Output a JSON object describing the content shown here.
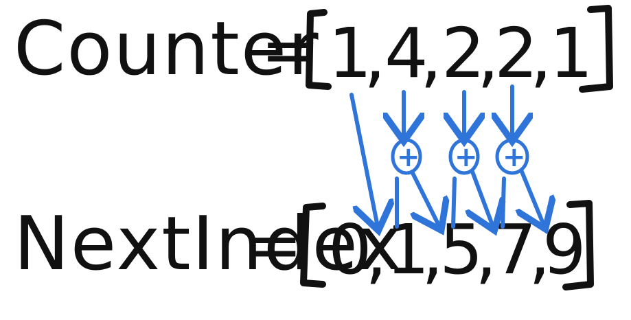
{
  "counter": {
    "name": "Counter",
    "equals": "=",
    "values": [
      "1",
      "4",
      "2",
      "2",
      "1"
    ],
    "separator": ","
  },
  "next_index": {
    "name": "NextIndex",
    "equals": "=",
    "values": [
      "0",
      "1",
      "5",
      "7",
      "9"
    ],
    "separator": ","
  },
  "operators": [
    "+",
    "+",
    "+"
  ],
  "colors": {
    "ink": "#111111",
    "arrow": "#2f74d9"
  }
}
